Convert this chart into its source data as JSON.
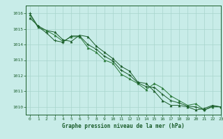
{
  "title": "Graphe pression niveau de la mer (hPa)",
  "background_color": "#c8ece8",
  "grid_color": "#a8d4cc",
  "line_color": "#1a5c2a",
  "line_color2": "#2a7a3a",
  "xlim": [
    -0.5,
    23
  ],
  "ylim": [
    1009.5,
    1016.5
  ],
  "yticks": [
    1010,
    1011,
    1012,
    1013,
    1014,
    1015,
    1016
  ],
  "xticks": [
    0,
    1,
    2,
    3,
    4,
    5,
    6,
    7,
    8,
    9,
    10,
    11,
    12,
    13,
    14,
    15,
    16,
    17,
    18,
    19,
    20,
    21,
    22,
    23
  ],
  "series1": [
    1015.7,
    1015.2,
    1014.9,
    1014.8,
    1014.3,
    1014.2,
    1014.6,
    1014.5,
    1013.9,
    1013.5,
    1013.1,
    1012.6,
    1012.3,
    1011.6,
    1011.5,
    1011.0,
    1010.4,
    1010.1,
    1010.1,
    1010.0,
    1009.8,
    1009.9,
    1010.1,
    1010.0
  ],
  "series2": [
    1015.9,
    1015.1,
    1014.9,
    1014.6,
    1014.2,
    1014.5,
    1014.5,
    1013.8,
    1013.5,
    1013.0,
    1012.8,
    1012.1,
    1011.8,
    1011.5,
    1011.1,
    1011.5,
    1011.2,
    1010.7,
    1010.4,
    1010.1,
    1010.2,
    1009.8,
    1010.0,
    1010.0
  ],
  "series3": [
    1016.0,
    1015.15,
    1014.75,
    1014.25,
    1014.15,
    1014.55,
    1014.55,
    1014.0,
    1013.7,
    1013.25,
    1012.95,
    1012.35,
    1012.05,
    1011.55,
    1011.3,
    1011.25,
    1010.8,
    1010.4,
    1010.25,
    1010.05,
    1010.0,
    1009.8,
    1010.05,
    1010.0
  ],
  "tick_fontsize": 4.5,
  "label_fontsize": 5.5
}
